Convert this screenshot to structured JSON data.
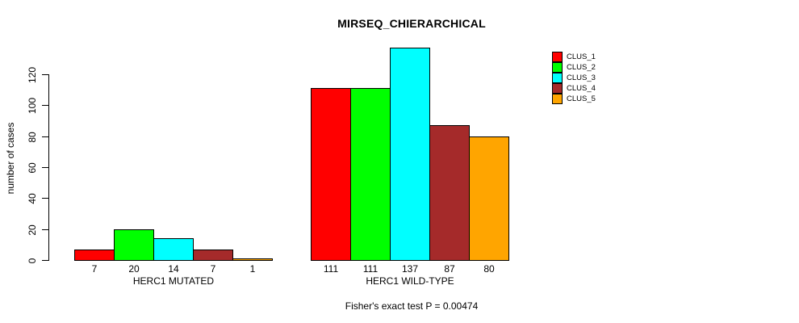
{
  "chart_data": {
    "type": "bar",
    "title": "MIRSEQ_CHIERARCHICAL",
    "ylabel": "number of cases",
    "xlabel": "",
    "footnote": "Fisher's exact test P = 0.00474",
    "categories": [
      "HERC1 MUTATED",
      "HERC1 WILD-TYPE"
    ],
    "groups": [
      {
        "label": "HERC1 MUTATED",
        "values": [
          7,
          20,
          14,
          7,
          1
        ]
      },
      {
        "label": "HERC1 WILD-TYPE",
        "values": [
          111,
          111,
          137,
          87,
          80
        ]
      }
    ],
    "series": [
      {
        "name": "CLUS_1",
        "color": "#ff0000"
      },
      {
        "name": "CLUS_2",
        "color": "#00ff00"
      },
      {
        "name": "CLUS_3",
        "color": "#00ffff"
      },
      {
        "name": "CLUS_4",
        "color": "#a52a2a"
      },
      {
        "name": "CLUS_5",
        "color": "#ffa500"
      }
    ],
    "bar_value_labels": [
      [
        "7",
        "20",
        "14",
        "7",
        "1"
      ],
      [
        "111",
        "111",
        "137",
        "87",
        "80"
      ]
    ],
    "yticks": [
      0,
      20,
      40,
      60,
      80,
      100,
      120
    ],
    "ylim": [
      0,
      137
    ],
    "grid": false,
    "legend_position": "top-right",
    "axis_color": "#000000",
    "background": "#ffffff"
  }
}
